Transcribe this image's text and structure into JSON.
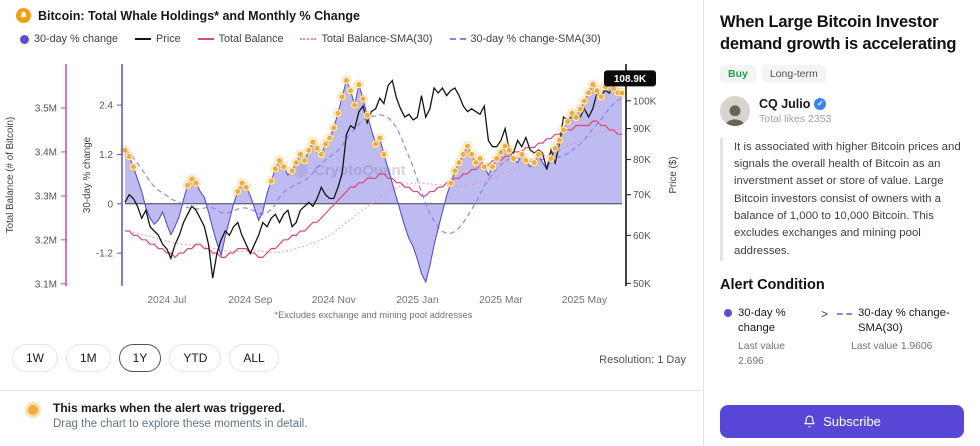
{
  "header": {
    "title": "Bitcoin: Total Whale Holdings* and Monthly % Change"
  },
  "legend": [
    {
      "label": "30-day % change",
      "swatch": "dot",
      "color": "#584fd1"
    },
    {
      "label": "Price",
      "swatch": "line",
      "color": "#141414"
    },
    {
      "label": "Total Balance",
      "swatch": "line",
      "color": "#e0457b"
    },
    {
      "label": "Total Balance-SMA(30)",
      "swatch": "dotted",
      "color": "#f08ab4"
    },
    {
      "label": "30-day % change-SMA(30)",
      "swatch": "dashed",
      "color": "#8b7cf0"
    }
  ],
  "controls": {
    "ranges": [
      "1W",
      "1M",
      "1Y",
      "YTD",
      "ALL"
    ],
    "selected": "1Y",
    "resolution": "Resolution: 1 Day"
  },
  "note": {
    "line1": "This marks when the alert was triggered.",
    "line2": "Drag the chart to explore these moments in detail."
  },
  "sidebar": {
    "title": "When Large Bitcoin Investor demand growth is accelerating",
    "badges": {
      "buy": "Buy",
      "term": "Long-term"
    },
    "author": {
      "name": "CQ Julio",
      "likes": "Total likes 2353"
    },
    "description": "It is associated with higher Bitcoin prices and signals the overall health of Bitcoin as an inverstment asset or store of value. Large Bitcoin investors consist of owners with a balance of 1,000 to 10,000 Bitcoin. This excludes exchanges and mining pool addresses.",
    "alert_condition": {
      "heading": "Alert Condition",
      "left": {
        "label": "30-day % change",
        "last_value_label": "Last value",
        "last_value": "2.696"
      },
      "operator": ">",
      "right": {
        "label": "30-day % change-SMA(30)",
        "last_value_label": "Last value",
        "last_value": "1.9606"
      }
    },
    "subscribe_label": "Subscribe"
  },
  "chart_data": {
    "type": "line",
    "title": "Bitcoin: Total Whale Holdings* and Monthly % Change",
    "watermark": "CryptoQuant",
    "footnote": "*Excludes exchange and mining pool addresses",
    "x_tick_labels": [
      "2024 Jul",
      "2024 Sep",
      "2024 Nov",
      "2025 Jan",
      "2025 Mar",
      "2025 May"
    ],
    "x_tick_positions": [
      10,
      30,
      50,
      70,
      90,
      110
    ],
    "axes": {
      "balance": {
        "label": "Total Balance (# of Bitcoin)",
        "ticks": [
          "3.1M",
          "3.2M",
          "3.3M",
          "3.4M",
          "3.5M"
        ],
        "tick_values": [
          3.1,
          3.2,
          3.3,
          3.4,
          3.5
        ],
        "domain": [
          3.095,
          3.6
        ],
        "color": "#e0457b"
      },
      "pct": {
        "label": "30-day % change",
        "ticks": [
          "-1.2",
          "0",
          "1.2",
          "2.4"
        ],
        "tick_values": [
          -1.2,
          0,
          1.2,
          2.4
        ],
        "domain": [
          -2.0,
          3.4
        ],
        "color": "#584fd1"
      },
      "price": {
        "label": "Price ($)",
        "ticks": [
          "50K",
          "60K",
          "70K",
          "80K",
          "90K",
          "100K"
        ],
        "tick_values": [
          50,
          60,
          70,
          80,
          90,
          100
        ],
        "domain": [
          49.5,
          115
        ],
        "scale": "log",
        "last_value": 108.9,
        "last_label": "108.9K",
        "color": "#18181b"
      }
    },
    "colors": {
      "area": "rgba(120,112,226,0.48)",
      "zero_line": "#3f3f46",
      "marker": "#f3ac33",
      "marker_halo": "rgba(246,183,75,0.33)",
      "axis_text": "#52525b",
      "x_text": "#71717a",
      "watermark": "#d4d4d8"
    },
    "draw_order": [
      "balance-sma",
      "balance",
      "pct-sma",
      "pct",
      "price"
    ],
    "series": [
      {
        "id": "pct",
        "name": "30-day % change",
        "axis": "pct",
        "color": "#584fd1",
        "width": 1.1,
        "style": "line",
        "values": [
          1.3,
          1.15,
          0.9,
          0.6,
          0.3,
          -0.1,
          -0.35,
          -0.5,
          -0.4,
          -0.2,
          -0.5,
          -0.75,
          -0.55,
          -0.3,
          0.1,
          0.45,
          0.6,
          0.5,
          0.3,
          0.15,
          -0.2,
          -0.6,
          -0.95,
          -1.25,
          -0.8,
          -0.4,
          0,
          0.3,
          0.5,
          0.4,
          0.2,
          -0.1,
          -0.4,
          -0.2,
          0.25,
          0.55,
          0.85,
          1.05,
          0.9,
          0.7,
          0.8,
          1,
          1.2,
          1.05,
          1.3,
          1.5,
          1.35,
          1.2,
          1.45,
          1.6,
          1.85,
          2.2,
          2.6,
          3,
          2.75,
          2.4,
          2.9,
          2.55,
          2.15,
          1.8,
          1.45,
          1.6,
          1.2,
          0.85,
          0.5,
          0.15,
          -0.2,
          -0.55,
          -0.85,
          -1.05,
          -1.35,
          -1.7,
          -1.9,
          -1.5,
          -1,
          -0.6,
          -0.2,
          0.2,
          0.5,
          0.8,
          1,
          1.2,
          1.4,
          1.2,
          1,
          1.1,
          0.9,
          0.7,
          0.9,
          1.1,
          1.25,
          1.4,
          1.3,
          1.1,
          1,
          1.2,
          1.05,
          0.9,
          1,
          1.2,
          1,
          0.85,
          1.1,
          1.35,
          1.55,
          1.8,
          2,
          2.2,
          2.1,
          2.3,
          2.5,
          2.7,
          2.9,
          2.75,
          2.6,
          2.85,
          3,
          2.8,
          2.7,
          2.696
        ]
      },
      {
        "id": "price",
        "name": "Price",
        "axis": "price",
        "color": "#141414",
        "width": 1.3,
        "style": "line",
        "values": [
          68,
          70,
          69,
          67,
          64,
          66,
          62,
          61,
          60,
          58,
          57,
          55,
          58,
          60,
          63,
          65,
          67,
          66,
          64,
          62,
          58,
          51,
          56,
          59,
          61,
          60,
          62,
          63,
          60,
          58,
          56,
          58,
          60,
          63,
          62,
          64,
          65,
          63,
          65,
          66,
          62,
          63,
          66,
          67,
          68,
          67,
          69,
          72,
          70,
          69,
          69,
          72,
          76,
          88,
          91,
          90,
          96,
          98,
          92,
          96,
          97,
          101,
          99,
          106,
          108,
          101,
          97,
          94,
          95,
          93,
          94,
          102,
          94,
          97,
          105,
          103,
          105,
          102,
          104,
          105,
          102,
          98,
          96,
          97,
          96,
          95,
          98,
          86,
          84,
          84,
          86,
          90,
          83,
          82,
          86,
          84,
          87,
          83,
          82,
          83,
          82,
          77,
          83,
          79,
          85,
          94,
          93,
          94,
          95,
          94,
          97,
          94,
          97,
          103,
          102,
          104,
          103,
          107,
          109,
          108.9
        ]
      },
      {
        "id": "balance",
        "name": "Total Balance",
        "axis": "balance",
        "color": "#e0457b",
        "width": 1.2,
        "style": "line",
        "values": [
          3.22,
          3.22,
          3.21,
          3.21,
          3.2,
          3.2,
          3.19,
          3.19,
          3.18,
          3.18,
          3.17,
          3.17,
          3.16,
          3.17,
          3.17,
          3.18,
          3.18,
          3.19,
          3.19,
          3.18,
          3.18,
          3.17,
          3.17,
          3.16,
          3.16,
          3.17,
          3.17,
          3.18,
          3.18,
          3.18,
          3.17,
          3.17,
          3.16,
          3.16,
          3.17,
          3.18,
          3.18,
          3.19,
          3.2,
          3.2,
          3.21,
          3.21,
          3.22,
          3.22,
          3.23,
          3.24,
          3.24,
          3.25,
          3.26,
          3.27,
          3.28,
          3.29,
          3.3,
          3.31,
          3.32,
          3.32,
          3.33,
          3.33,
          3.34,
          3.34,
          3.34,
          3.35,
          3.35,
          3.34,
          3.34,
          3.33,
          3.33,
          3.32,
          3.32,
          3.31,
          3.31,
          3.3,
          3.3,
          3.31,
          3.31,
          3.32,
          3.32,
          3.33,
          3.33,
          3.34,
          3.34,
          3.35,
          3.35,
          3.36,
          3.36,
          3.37,
          3.37,
          3.37,
          3.38,
          3.38,
          3.38,
          3.39,
          3.39,
          3.4,
          3.4,
          3.4,
          3.41,
          3.41,
          3.41,
          3.42,
          3.42,
          3.43,
          3.43,
          3.44,
          3.44,
          3.45,
          3.45,
          3.45,
          3.46,
          3.46,
          3.46,
          3.46,
          3.47,
          3.47,
          3.46,
          3.46,
          3.45,
          3.45,
          3.44,
          3.44
        ]
      },
      {
        "id": "balance-sma",
        "name": "Total Balance-SMA(30)",
        "axis": "balance",
        "color": "#f08ab4",
        "width": 1.1,
        "style": "dotted",
        "sma_of": 2,
        "window": 18
      },
      {
        "id": "pct-sma",
        "name": "30-day % change-SMA(30)",
        "axis": "pct",
        "color": "#8b7cf0",
        "width": 1.1,
        "style": "dashed",
        "sma_of": 0,
        "window": 14
      }
    ],
    "markers": {
      "series": 0,
      "indices": [
        0,
        1,
        2,
        15,
        16,
        17,
        27,
        28,
        29,
        35,
        36,
        37,
        38,
        40,
        41,
        42,
        43,
        44,
        45,
        46,
        47,
        48,
        49,
        50,
        51,
        52,
        53,
        54,
        55,
        56,
        57,
        58,
        60,
        61,
        62,
        78,
        79,
        80,
        81,
        82,
        83,
        84,
        85,
        86,
        88,
        89,
        90,
        91,
        92,
        93,
        95,
        96,
        98,
        99,
        102,
        103,
        104,
        105,
        106,
        107,
        108,
        109,
        110,
        111,
        112,
        113,
        114,
        115,
        116,
        117,
        118,
        119
      ]
    }
  }
}
